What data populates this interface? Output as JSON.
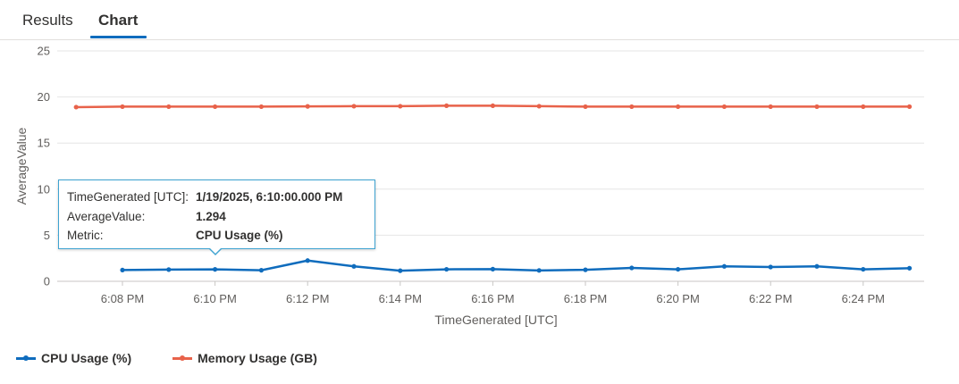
{
  "tabs": [
    {
      "label": "Results",
      "active": false
    },
    {
      "label": "Chart",
      "active": true
    }
  ],
  "colors": {
    "cpu": "#0f6cbd",
    "memory": "#e8624a",
    "accent": "#0f6cbd",
    "tooltip_border": "#3fa3d1"
  },
  "chart_data": {
    "type": "line",
    "xlabel": "TimeGenerated [UTC]",
    "ylabel": "AverageValue",
    "ylim": [
      0,
      25
    ],
    "yticks": [
      0,
      5,
      10,
      15,
      20,
      25
    ],
    "xtick_labels": [
      "6:08 PM",
      "6:10 PM",
      "6:12 PM",
      "6:14 PM",
      "6:16 PM",
      "6:18 PM",
      "6:20 PM",
      "6:22 PM",
      "6:24 PM"
    ],
    "x_minutes": [
      7,
      8,
      9,
      10,
      11,
      12,
      13,
      14,
      15,
      16,
      17,
      18,
      19,
      20,
      21,
      22,
      23,
      24,
      25
    ],
    "series": [
      {
        "name": "CPU Usage (%)",
        "color": "#0f6cbd",
        "values": [
          null,
          1.22,
          1.27,
          1.294,
          1.2,
          2.25,
          1.62,
          1.15,
          1.3,
          1.32,
          1.18,
          1.25,
          1.45,
          1.3,
          1.62,
          1.55,
          1.62,
          1.3,
          1.42
        ]
      },
      {
        "name": "Memory Usage (GB)",
        "color": "#e8624a",
        "values": [
          18.9,
          18.95,
          18.95,
          18.95,
          18.95,
          18.98,
          19.0,
          19.0,
          19.05,
          19.05,
          19.0,
          18.95,
          18.95,
          18.95,
          18.95,
          18.95,
          18.95,
          18.95,
          18.95
        ]
      }
    ],
    "legend": {
      "position": "bottom-left"
    },
    "grid": true
  },
  "tooltip": {
    "rows": [
      {
        "key": "TimeGenerated [UTC]:",
        "value": "1/19/2025, 6:10:00.000 PM"
      },
      {
        "key": "AverageValue:",
        "value": "1.294"
      },
      {
        "key": "Metric:",
        "value": "CPU Usage (%)"
      }
    ]
  }
}
